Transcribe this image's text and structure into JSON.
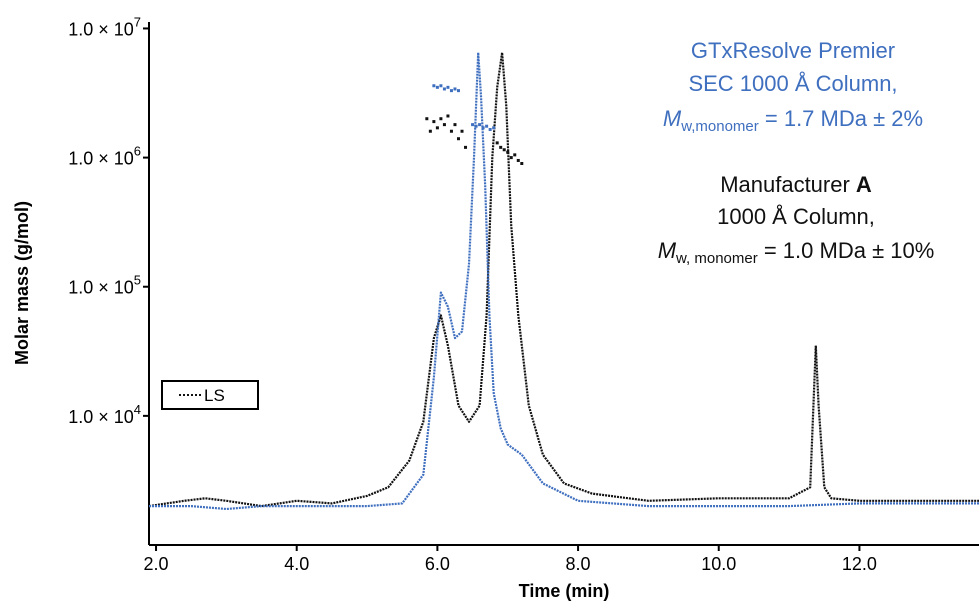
{
  "chart_data": {
    "type": "line",
    "xlabel": "Time (min)",
    "ylabel": "Molar mass (g/mol)",
    "xlim": [
      1.9,
      13.7
    ],
    "ylog": true,
    "ylim_log10": [
      3.0,
      7.05
    ],
    "x_ticks": [
      "2.0",
      "4.0",
      "6.0",
      "8.0",
      "10.0",
      "12.0"
    ],
    "x_tick_values": [
      2,
      4,
      6,
      8,
      10,
      12
    ],
    "y_ticks": [
      {
        "value": 10000,
        "mant": "1.0 × 10",
        "exp": "4"
      },
      {
        "value": 100000,
        "mant": "1.0 × 10",
        "exp": "5"
      },
      {
        "value": 1000000,
        "mant": "1.0 × 10",
        "exp": "6"
      },
      {
        "value": 10000000,
        "mant": "1.0 × 10",
        "exp": "7"
      }
    ],
    "legend": {
      "position": "left-middle",
      "entries": [
        "LS"
      ]
    },
    "series": [
      {
        "color": "#111111",
        "style": "dotted",
        "x": [
          1.9,
          2.4,
          2.7,
          3.0,
          3.5,
          4.0,
          4.5,
          5.0,
          5.3,
          5.6,
          5.8,
          5.95,
          6.05,
          6.15,
          6.3,
          6.45,
          6.6,
          6.7,
          6.78,
          6.85,
          6.92,
          6.98,
          7.05,
          7.15,
          7.3,
          7.5,
          7.8,
          8.2,
          9.0,
          10.0,
          11.0,
          11.3,
          11.38,
          11.42,
          11.5,
          11.6,
          12.0,
          13.0,
          13.7
        ],
        "y": [
          2000,
          2200,
          2300,
          2200,
          2000,
          2200,
          2100,
          2400,
          2800,
          4500,
          9000,
          40000,
          60000,
          35000,
          12000,
          9000,
          12000,
          60000,
          1000000,
          3500000,
          6500000,
          2500000,
          300000,
          60000,
          12000,
          5000,
          3000,
          2500,
          2200,
          2300,
          2300,
          2800,
          35000,
          12000,
          2800,
          2300,
          2200,
          2200,
          2200
        ]
      },
      {
        "color": "#3f6fbf",
        "style": "dotted",
        "x": [
          1.9,
          2.5,
          3.0,
          3.5,
          4.0,
          4.5,
          5.0,
          5.5,
          5.8,
          5.95,
          6.05,
          6.15,
          6.25,
          6.35,
          6.45,
          6.52,
          6.58,
          6.62,
          6.68,
          6.74,
          6.8,
          6.9,
          7.0,
          7.2,
          7.5,
          8.0,
          9.0,
          10.0,
          11.0,
          12.0,
          13.0,
          13.7
        ],
        "y": [
          2000,
          2000,
          1900,
          2000,
          2000,
          2000,
          2000,
          2100,
          3500,
          20000,
          90000,
          70000,
          40000,
          45000,
          150000,
          1000000,
          6500000,
          3000000,
          600000,
          60000,
          15000,
          8000,
          6000,
          5000,
          3000,
          2200,
          2000,
          2000,
          2000,
          2100,
          2100,
          2100
        ]
      },
      {
        "color": "#111111",
        "style": "points",
        "x": [
          5.85,
          5.9,
          5.95,
          6.0,
          6.05,
          6.1,
          6.15,
          6.2,
          6.25,
          6.3,
          6.35,
          6.4
        ],
        "y": [
          2000000,
          1600000,
          1900000,
          1700000,
          2000000,
          1800000,
          2100000,
          1600000,
          1800000,
          1400000,
          1600000,
          1200000
        ]
      },
      {
        "color": "#111111",
        "style": "points",
        "x": [
          6.85,
          6.9,
          6.95,
          7.0,
          7.05,
          7.1,
          7.15,
          7.2
        ],
        "y": [
          1300000,
          1200000,
          1150000,
          1100000,
          1000000,
          1050000,
          950000,
          900000
        ]
      },
      {
        "color": "#3f6fbf",
        "style": "points",
        "x": [
          5.95,
          6.0,
          6.05,
          6.1,
          6.15,
          6.2,
          6.25,
          6.3
        ],
        "y": [
          3600000,
          3500000,
          3600000,
          3400000,
          3500000,
          3300000,
          3400000,
          3300000
        ]
      },
      {
        "color": "#3f6fbf",
        "style": "points",
        "x": [
          6.5,
          6.55,
          6.6,
          6.65,
          6.7,
          6.75,
          6.8
        ],
        "y": [
          1800000,
          1750000,
          1800000,
          1700000,
          1750000,
          1650000,
          1700000
        ]
      }
    ]
  },
  "annotations": {
    "blue": {
      "line1": "GTxResolve Premier",
      "line2": "SEC 1000 Å Column,",
      "m": "M",
      "sub": "w,monomer",
      "rest": " = 1.7 MDa ± 2%",
      "color": "#3f6fbf"
    },
    "black": {
      "line1_pre": "Manufacturer ",
      "line1_bold": "A",
      "line2": "1000 Å Column,",
      "m": "M",
      "sub": "w, monomer",
      "rest": " = 1.0 MDa ± 10%",
      "color": "#111111"
    }
  }
}
